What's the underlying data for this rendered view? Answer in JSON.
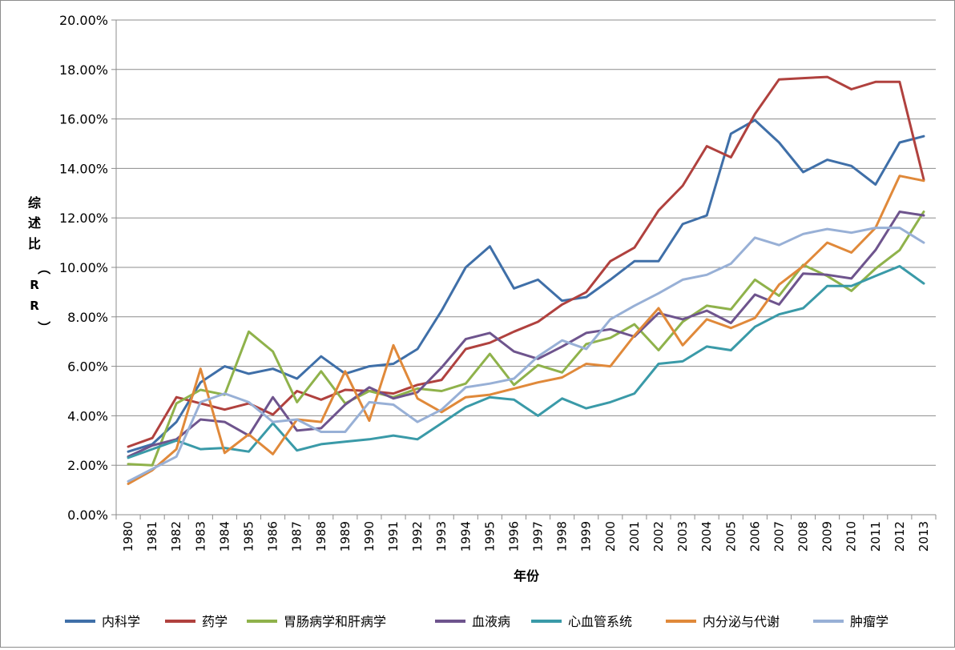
{
  "chart_data": {
    "type": "line",
    "xlabel": "年份",
    "ylabel": "综述比（RR）",
    "ylim": [
      0,
      20
    ],
    "y_ticks": [
      0,
      2,
      4,
      6,
      8,
      10,
      12,
      14,
      16,
      18,
      20
    ],
    "y_tick_labels": [
      "0.00%",
      "2.00%",
      "4.00%",
      "6.00%",
      "8.00%",
      "10.00%",
      "12.00%",
      "14.00%",
      "16.00%",
      "18.00%",
      "20.00%"
    ],
    "grid": "horizontal",
    "legend_position": "bottom",
    "categories": [
      "1980",
      "1981",
      "1982",
      "1983",
      "1984",
      "1985",
      "1986",
      "1987",
      "1988",
      "1989",
      "1990",
      "1991",
      "1992",
      "1993",
      "1994",
      "1995",
      "1996",
      "1997",
      "1998",
      "1999",
      "2000",
      "2001",
      "2002",
      "2003",
      "2004",
      "2005",
      "2006",
      "2007",
      "2008",
      "2009",
      "2010",
      "2011",
      "2012",
      "2013"
    ],
    "series": [
      {
        "name": "内科学",
        "color": "#3f6fa8",
        "values": [
          2.55,
          2.85,
          3.75,
          5.35,
          6.0,
          5.7,
          5.9,
          5.5,
          6.4,
          5.7,
          6.0,
          6.1,
          6.7,
          8.25,
          10.0,
          10.85,
          9.15,
          9.5,
          8.65,
          8.8,
          9.5,
          10.25,
          10.25,
          11.75,
          12.1,
          15.4,
          15.95,
          15.05,
          13.85,
          14.35,
          14.1,
          13.35,
          15.05,
          15.3
        ]
      },
      {
        "name": "药学",
        "color": "#b0413e",
        "values": [
          2.75,
          3.1,
          4.75,
          4.5,
          4.25,
          4.5,
          4.05,
          5.0,
          4.65,
          5.05,
          5.0,
          4.9,
          5.25,
          5.45,
          6.7,
          6.95,
          7.4,
          7.8,
          8.5,
          9.0,
          10.25,
          10.8,
          12.3,
          13.3,
          14.9,
          14.45,
          16.2,
          17.6,
          17.65,
          17.7,
          17.2,
          17.5,
          17.5,
          13.55
        ]
      },
      {
        "name": "胃肠病学和肝病学",
        "color": "#8fb24b",
        "values": [
          2.05,
          2.0,
          4.5,
          5.05,
          4.85,
          7.4,
          6.6,
          4.55,
          5.8,
          4.5,
          5.0,
          4.75,
          5.1,
          5.0,
          5.3,
          6.5,
          5.25,
          6.05,
          5.75,
          6.9,
          7.15,
          7.7,
          6.65,
          7.8,
          8.45,
          8.3,
          9.5,
          8.85,
          10.1,
          9.65,
          9.05,
          9.95,
          10.7,
          12.25
        ]
      },
      {
        "name": "血液病",
        "color": "#6e548d",
        "values": [
          2.35,
          2.8,
          3.05,
          3.85,
          3.75,
          3.2,
          4.75,
          3.4,
          3.5,
          4.45,
          5.15,
          4.7,
          4.95,
          5.95,
          7.1,
          7.35,
          6.6,
          6.3,
          6.8,
          7.35,
          7.5,
          7.2,
          8.15,
          7.9,
          8.25,
          7.75,
          8.9,
          8.5,
          9.75,
          9.7,
          9.55,
          10.7,
          12.25,
          12.1
        ]
      },
      {
        "name": "心血管系统",
        "color": "#3a9aa8",
        "values": [
          2.3,
          2.65,
          3.0,
          2.65,
          2.7,
          2.55,
          3.7,
          2.6,
          2.85,
          2.95,
          3.05,
          3.2,
          3.05,
          3.7,
          4.35,
          4.75,
          4.65,
          4.0,
          4.7,
          4.3,
          4.55,
          4.9,
          6.1,
          6.2,
          6.8,
          6.65,
          7.6,
          8.1,
          8.35,
          9.25,
          9.25,
          9.65,
          10.05,
          9.35
        ]
      },
      {
        "name": "内分泌与代谢",
        "color": "#e0893a",
        "values": [
          1.25,
          1.8,
          2.65,
          5.9,
          2.5,
          3.25,
          2.45,
          3.85,
          3.75,
          5.8,
          3.8,
          6.85,
          4.7,
          4.15,
          4.75,
          4.85,
          5.1,
          5.35,
          5.55,
          6.1,
          6.0,
          7.25,
          8.35,
          6.85,
          7.9,
          7.55,
          7.95,
          9.3,
          10.05,
          11.0,
          10.6,
          11.6,
          13.7,
          13.5
        ]
      },
      {
        "name": "肿瘤学",
        "color": "#98b0d6",
        "values": [
          1.35,
          1.85,
          2.35,
          4.55,
          4.9,
          4.55,
          3.75,
          3.85,
          3.35,
          3.35,
          4.55,
          4.45,
          3.75,
          4.25,
          5.15,
          5.3,
          5.5,
          6.4,
          7.05,
          6.7,
          7.9,
          8.45,
          8.95,
          9.5,
          9.7,
          10.15,
          11.2,
          10.9,
          11.35,
          11.55,
          11.4,
          11.6,
          11.6,
          11.0
        ]
      }
    ]
  }
}
